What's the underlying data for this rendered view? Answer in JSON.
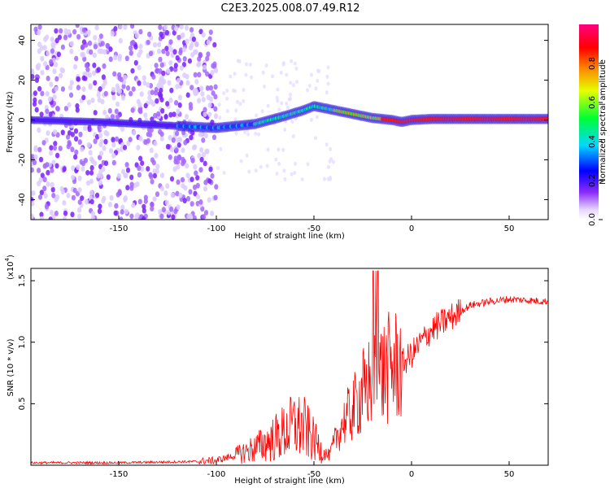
{
  "figure_title": "C2E3.2025.008.07.49.R12",
  "chart_data": [
    {
      "type": "heatmap",
      "xlabel": "Height of straight line (km)",
      "ylabel": "Frequency (Hz)",
      "xlim": [
        -195,
        70
      ],
      "ylim": [
        -50,
        48
      ],
      "x_ticks": [
        -150,
        -100,
        -50,
        0,
        50
      ],
      "y_ticks": [
        -40,
        -20,
        0,
        20,
        40
      ],
      "colorbar": {
        "label": "Normalized spectral amplitude",
        "range": [
          0,
          1
        ],
        "ticks": [
          "0.0",
          "0.2",
          "0.4",
          "0.6",
          "0.8"
        ],
        "colormap": "rainbow (white-lavender → violet → blue → cyan → green → yellow → red → magenta)"
      },
      "ridge_frequency_hz": {
        "x": [
          -195,
          -160,
          -120,
          -100,
          -80,
          -65,
          -55,
          -50,
          -40,
          -30,
          -20,
          -10,
          -5,
          0,
          10,
          30,
          50,
          70
        ],
        "y": [
          0,
          -1,
          -3,
          -4,
          -2,
          2,
          5,
          7,
          5,
          3,
          1,
          0,
          -1,
          0,
          0.5,
          0.5,
          0.5,
          0.5
        ]
      },
      "scatter_band_x": [
        -195,
        -100
      ]
    },
    {
      "type": "line",
      "xlabel": "Height of straight line (km)",
      "ylabel": "SNR (10 * v/v)",
      "y_multiplier": "(x10",
      "y_multiplier_exp": "4",
      "xlim": [
        -195,
        70
      ],
      "ylim": [
        0,
        1.6
      ],
      "x_ticks": [
        -150,
        -100,
        -50,
        0,
        50
      ],
      "y_ticks": [
        0.5,
        1.0,
        1.5
      ],
      "y_tick_labels": [
        "0.5",
        "1.0",
        "1.5"
      ],
      "series": [
        {
          "color": "#ff0000",
          "x": [
            -195,
            -150,
            -110,
            -100,
            -90,
            -80,
            -70,
            -60,
            -55,
            -50,
            -45,
            -42,
            -38,
            -35,
            -30,
            -25,
            -20,
            -15,
            -10,
            -5,
            0,
            5,
            10,
            20,
            30,
            40,
            50,
            60,
            70
          ],
          "y": [
            0.02,
            0.02,
            0.03,
            0.04,
            0.08,
            0.14,
            0.22,
            0.32,
            0.3,
            0.2,
            0.1,
            0.08,
            0.25,
            0.35,
            0.45,
            0.6,
            0.7,
            0.75,
            0.8,
            0.82,
            0.9,
            1.0,
            1.1,
            1.2,
            1.3,
            1.33,
            1.35,
            1.34,
            1.33
          ]
        }
      ]
    }
  ]
}
